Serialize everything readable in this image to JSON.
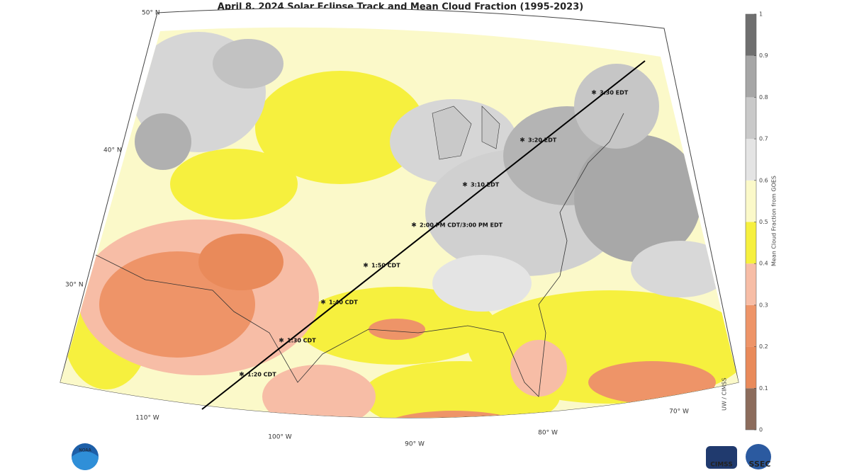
{
  "title": "April 8, 2024  Solar Eclipse Track and Mean Cloud Fraction (1995-2023)",
  "colorbar": {
    "label": "Mean Cloud Fraction from GOES",
    "ticks": [
      0,
      0.1,
      0.2,
      0.3,
      0.4,
      0.5,
      0.6,
      0.7,
      0.8,
      0.9,
      1
    ],
    "colors": [
      "#8c6c5c",
      "#e98a5a",
      "#ee9468",
      "#f7bda6",
      "#f6f03e",
      "#fbf9c9",
      "#e4e4e4",
      "#c9c9c9",
      "#a6a6a6",
      "#6f6f6f"
    ]
  },
  "latitude_labels": [
    "50° N",
    "40° N",
    "30° N"
  ],
  "longitude_labels": [
    "110° W",
    "100° W",
    "90° W",
    "80° W",
    "70° W"
  ],
  "track_labels": [
    "1:20 CDT",
    "1:30 CDT",
    "1:40 CDT",
    "1:50 CDT",
    "2:00 PM CDT/3:00 PM EDT",
    "3:10 EDT",
    "3:20 EDT",
    "3:30 EDT"
  ],
  "credit": "UW / CIMSS",
  "logos": [
    "NOAA",
    "CIMSS",
    "SSEC"
  ]
}
